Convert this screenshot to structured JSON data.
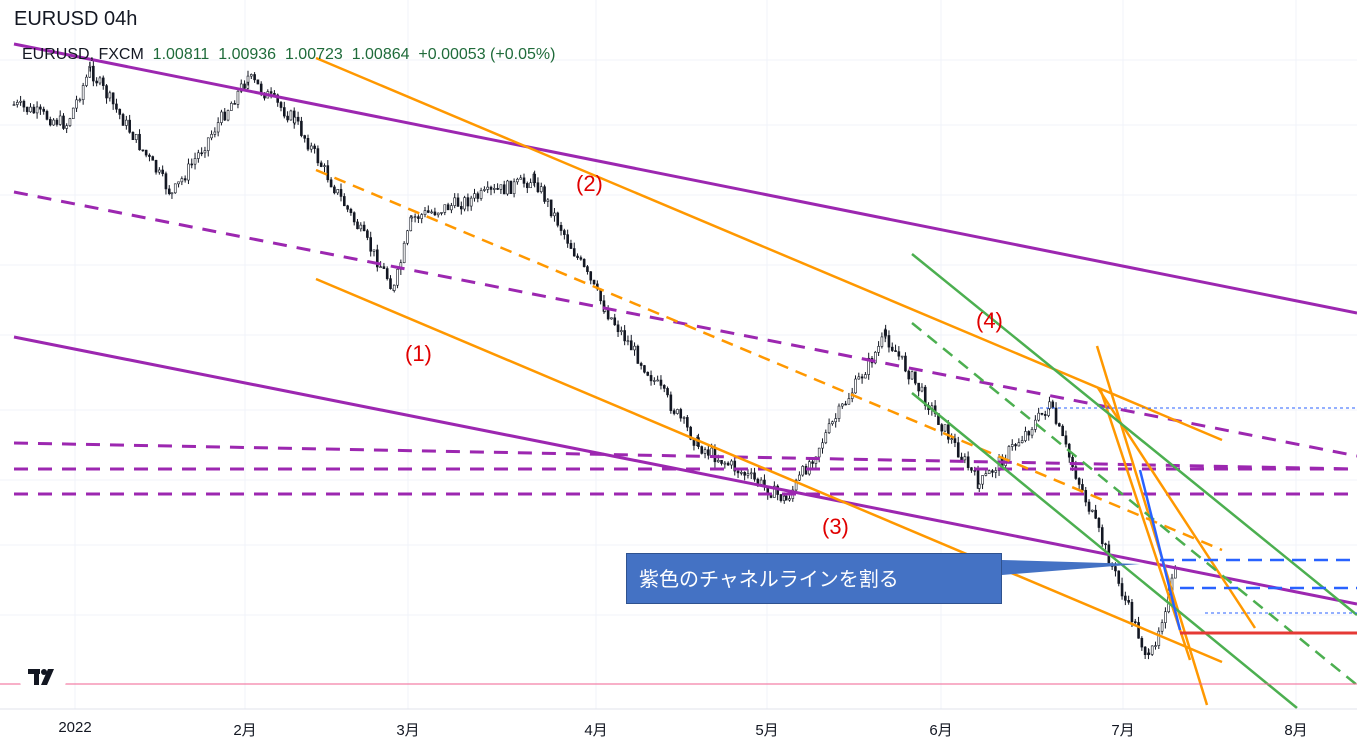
{
  "title": "EURUSD 04h",
  "legend": {
    "symbol": "EURUSD, FXCM",
    "open": "1.00811",
    "high": "1.00936",
    "low": "1.00723",
    "close": "1.00864",
    "change": "+0.00053 (+0.05%)"
  },
  "annotation": "紫色のチャネルラインを割る",
  "wave_labels": [
    "(1)",
    "(2)",
    "(3)",
    "(4)"
  ],
  "colors": {
    "purple": "#9c27b0",
    "orange": "#ff9800",
    "green": "#4caf50",
    "blue": "#2962ff",
    "red": "#e53935",
    "candles": "#131722"
  },
  "chart_data": {
    "type": "candlestick",
    "symbol": "EURUSD",
    "timeframe": "04h",
    "x_ticks": [
      "2022",
      "2月",
      "3月",
      "4月",
      "5月",
      "6月",
      "7月",
      "8月"
    ],
    "last_bar": {
      "open": 1.00811,
      "high": 1.00936,
      "low": 1.00723,
      "close": 1.00864
    },
    "close_path": [
      {
        "date": "2022-01-01",
        "close": 1.137
      },
      {
        "date": "2022-01-10",
        "close": 1.132
      },
      {
        "date": "2022-01-14",
        "close": 1.146
      },
      {
        "date": "2022-01-28",
        "close": 1.114
      },
      {
        "date": "2022-02-10",
        "close": 1.144
      },
      {
        "date": "2022-02-18",
        "close": 1.133
      },
      {
        "date": "2022-03-07",
        "close": 1.09
      },
      {
        "date": "2022-03-10",
        "close": 1.108
      },
      {
        "date": "2022-03-31",
        "close": 1.118
      },
      {
        "date": "2022-04-12",
        "close": 1.085
      },
      {
        "date": "2022-04-28",
        "close": 1.05
      },
      {
        "date": "2022-05-13",
        "close": 1.036
      },
      {
        "date": "2022-05-30",
        "close": 1.078
      },
      {
        "date": "2022-06-15",
        "close": 1.04
      },
      {
        "date": "2022-06-27",
        "close": 1.06
      },
      {
        "date": "2022-07-14",
        "close": 0.995
      },
      {
        "date": "2022-07-19",
        "close": 1.02
      }
    ],
    "waves": [
      "(1)",
      "(2)",
      "(3)",
      "(4)"
    ]
  }
}
